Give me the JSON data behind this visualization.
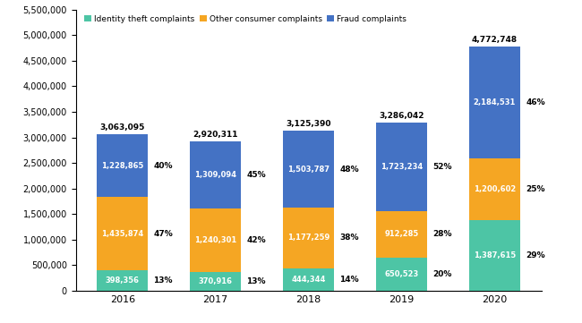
{
  "years": [
    "2016",
    "2017",
    "2018",
    "2019",
    "2020"
  ],
  "identity_theft": [
    398356,
    370916,
    444344,
    650523,
    1387615
  ],
  "other_consumer": [
    1435874,
    1240301,
    1177259,
    912285,
    1200602
  ],
  "fraud": [
    1228865,
    1309094,
    1503787,
    1723234,
    2184531
  ],
  "totals": [
    3063095,
    2920311,
    3125390,
    3286042,
    4772748
  ],
  "identity_theft_pct": [
    "13%",
    "13%",
    "14%",
    "20%",
    "29%"
  ],
  "other_consumer_pct": [
    "47%",
    "42%",
    "38%",
    "28%",
    "25%"
  ],
  "fraud_pct": [
    "40%",
    "45%",
    "48%",
    "52%",
    "46%"
  ],
  "colors": {
    "identity_theft": "#4DC5A5",
    "other_consumer": "#F5A623",
    "fraud": "#4472C4"
  },
  "ylim": [
    0,
    5500000
  ],
  "yticks": [
    0,
    500000,
    1000000,
    1500000,
    2000000,
    2500000,
    3000000,
    3500000,
    4000000,
    4500000,
    5000000,
    5500000
  ],
  "legend_labels": [
    "Identity theft complaints",
    "Other consumer complaints",
    "Fraud complaints"
  ],
  "bar_width": 0.55
}
